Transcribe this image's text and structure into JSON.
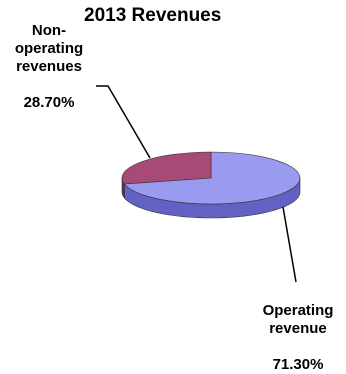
{
  "chart_data": {
    "type": "pie",
    "title": "2013 Revenues",
    "slices": [
      {
        "label": "Operating revenue",
        "value": 71.3,
        "percent_label": "71.30%",
        "color": "#9a9af0",
        "side_color": "#6262c4"
      },
      {
        "label": "Non-operating revenues",
        "value": 28.7,
        "percent_label": "28.70%",
        "color": "#a84a78",
        "side_color": "#702848"
      }
    ],
    "legend": "none"
  }
}
